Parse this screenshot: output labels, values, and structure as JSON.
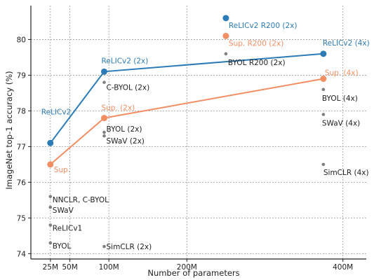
{
  "chart_data": {
    "type": "scatter",
    "xlabel": "Number of parameters",
    "ylabel": "ImageNet top-1 accuracy (%)",
    "xlim": [
      0,
      430
    ],
    "ylim": [
      73.85,
      80.95
    ],
    "grid": true,
    "x_ticks": [
      {
        "value": 25,
        "label": "25M"
      },
      {
        "value": 50,
        "label": "50M"
      },
      {
        "value": 100,
        "label": "100M"
      },
      {
        "value": 200,
        "label": "200M"
      },
      {
        "value": 400,
        "label": "400M"
      }
    ],
    "y_ticks": [
      74,
      75,
      76,
      77,
      78,
      79,
      80
    ],
    "colors": {
      "relic": "#2c7bb6",
      "sup": "#f28e63",
      "other": "#7f7f7f"
    },
    "series": [
      {
        "label_key": "relic",
        "points": [
          {
            "x": 25,
            "y": 77.1,
            "label": "ReLICv2"
          },
          {
            "x": 94,
            "y": 79.1,
            "label": "ReLICv2 (2x)"
          },
          {
            "x": 375,
            "y": 79.6,
            "label": "ReLICv2 (4x)"
          }
        ]
      },
      {
        "label_key": "sup",
        "points": [
          {
            "x": 25,
            "y": 76.5,
            "label": "Sup."
          },
          {
            "x": 94,
            "y": 77.8,
            "label": "Sup. (2x)"
          },
          {
            "x": 375,
            "y": 78.9,
            "label": "Sup. (4x)"
          }
        ]
      }
    ],
    "extra_points": [
      {
        "x": 250,
        "y": 80.6,
        "label": "ReLICv2 R200 (2x)",
        "color_key": "relic"
      },
      {
        "x": 250,
        "y": 80.1,
        "label": "Sup. R200 (2x)",
        "color_key": "sup"
      },
      {
        "x": 250,
        "y": 79.6,
        "label": "BYOL R200 (2x)",
        "color_key": "other"
      },
      {
        "x": 94,
        "y": 78.8,
        "label": "C-BYOL (2x)",
        "color_key": "other"
      },
      {
        "x": 94,
        "y": 77.4,
        "label": "BYOL (2x)",
        "color_key": "other"
      },
      {
        "x": 94,
        "y": 77.3,
        "label": "SWaV (2x)",
        "color_key": "other"
      },
      {
        "x": 94,
        "y": 74.2,
        "label": "SimCLR (2x)",
        "color_key": "other"
      },
      {
        "x": 375,
        "y": 78.6,
        "label": "BYOL (4x)",
        "color_key": "other"
      },
      {
        "x": 375,
        "y": 77.9,
        "label": "SWaV (4x)",
        "color_key": "other"
      },
      {
        "x": 375,
        "y": 76.5,
        "label": "SimCLR (4x)",
        "color_key": "other"
      },
      {
        "x": 25,
        "y": 75.6,
        "label": "NNCLR,  C-BYOL",
        "color_key": "other"
      },
      {
        "x": 25,
        "y": 75.3,
        "label": "SWaV",
        "color_key": "other"
      },
      {
        "x": 25,
        "y": 74.8,
        "label": "ReLICv1",
        "color_key": "other"
      },
      {
        "x": 25,
        "y": 74.3,
        "label": "BYOL",
        "color_key": "other"
      }
    ]
  }
}
